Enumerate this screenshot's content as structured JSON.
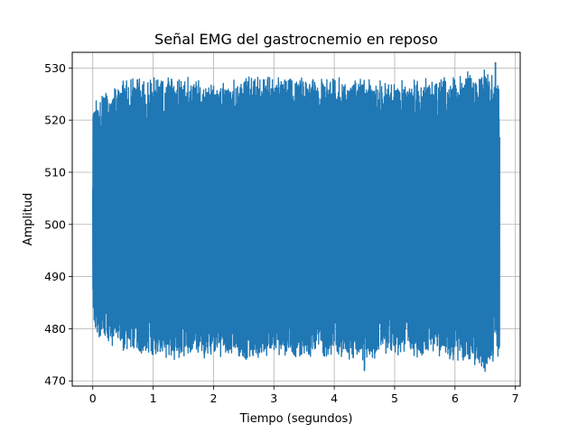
{
  "chart_data": {
    "type": "line",
    "title": "Señal EMG del gastrocnemio en reposo",
    "xlabel": "Tiempo (segundos)",
    "ylabel": "Amplitud",
    "xlim": [
      -0.34,
      7.08
    ],
    "ylim": [
      469.0,
      533.0
    ],
    "xticks": [
      0,
      1,
      2,
      3,
      4,
      5,
      6,
      7
    ],
    "xtick_labels": [
      "0",
      "1",
      "2",
      "3",
      "4",
      "5",
      "6",
      "7"
    ],
    "yticks": [
      470,
      480,
      490,
      500,
      510,
      520,
      530
    ],
    "ytick_labels": [
      "470",
      "480",
      "490",
      "500",
      "510",
      "520",
      "530"
    ],
    "grid": true,
    "legend": "none",
    "series": [
      {
        "color": "#1f77b4",
        "x_start": 0.0,
        "x_end": 6.74,
        "band_time": [
          0.0,
          0.5,
          1.0,
          1.5,
          2.0,
          2.5,
          3.0,
          3.5,
          4.0,
          4.5,
          5.0,
          5.5,
          6.0,
          6.5,
          6.74
        ],
        "band_upper": [
          522,
          527,
          527,
          527,
          526,
          527,
          527,
          527,
          527,
          527,
          526,
          527,
          527,
          529,
          526
        ],
        "band_lower": [
          480,
          477,
          476,
          475,
          476,
          475,
          476,
          475,
          476,
          475,
          476,
          476,
          475,
          473,
          475
        ],
        "peak_max": 531,
        "peak_max_time": 6.67,
        "peak_min": 472,
        "peak_min_time": 4.5,
        "start_value": 507
      }
    ]
  }
}
